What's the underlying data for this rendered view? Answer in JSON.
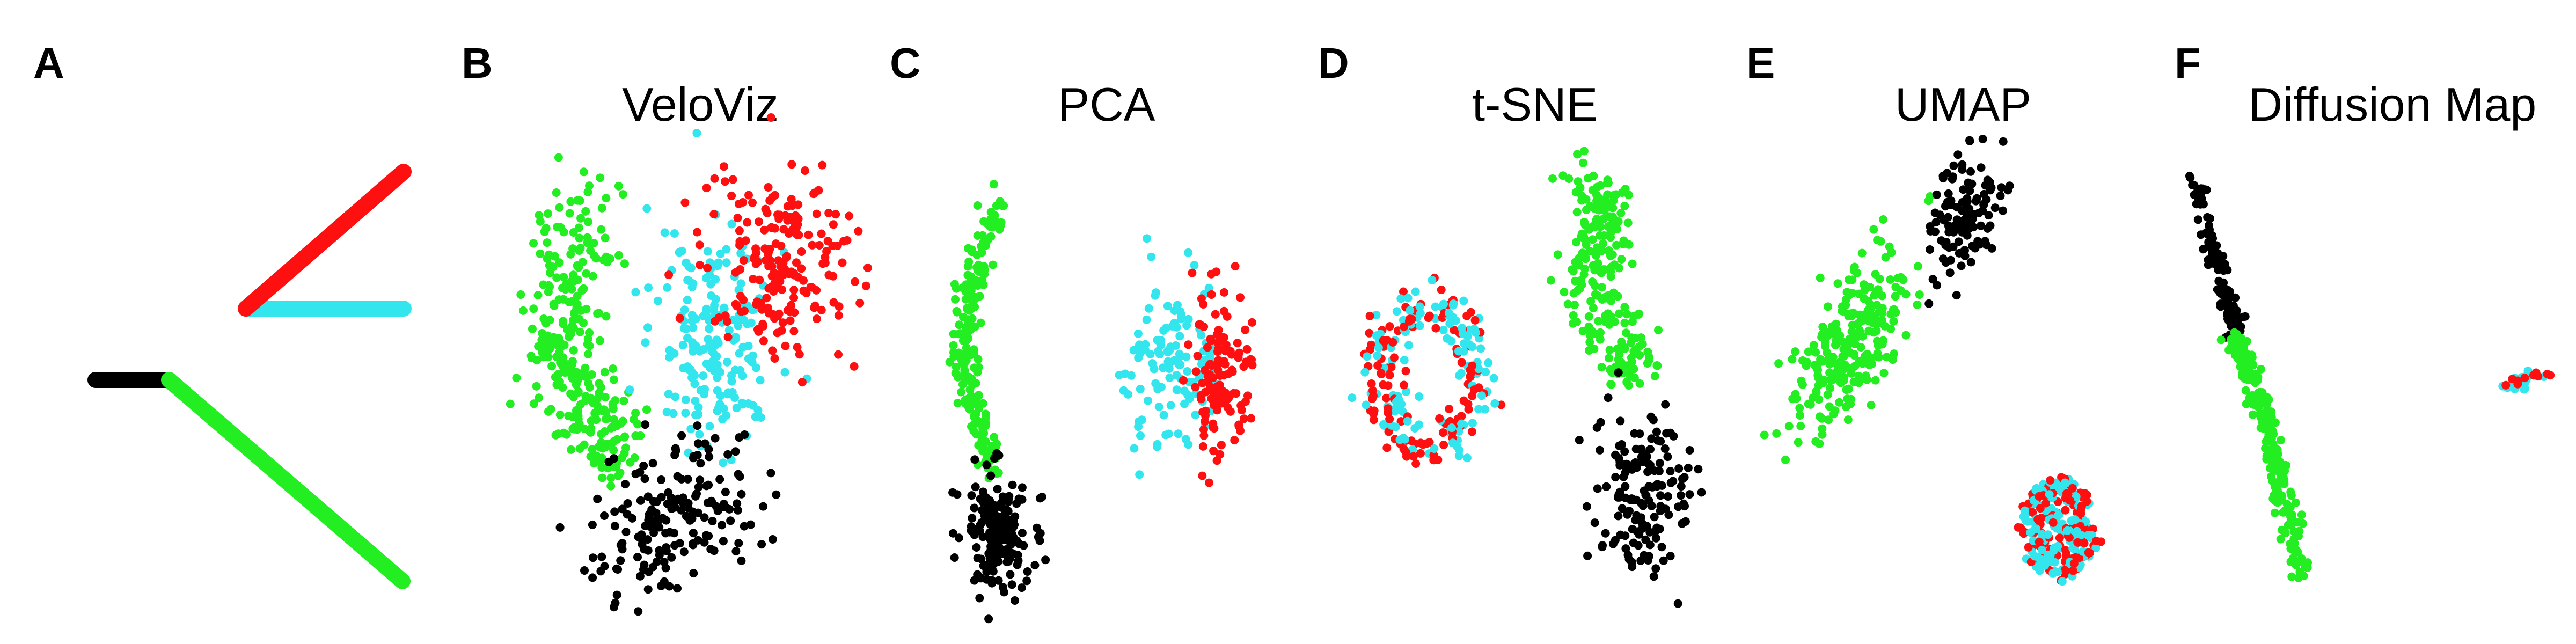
{
  "colors": {
    "black": "#000000",
    "green": "#22ee22",
    "cyan": "#33e6ee",
    "red": "#ff1010"
  },
  "panels": [
    {
      "letter": "A",
      "title": ""
    },
    {
      "letter": "B",
      "title": "VeloViz"
    },
    {
      "letter": "C",
      "title": "PCA"
    },
    {
      "letter": "D",
      "title": "t-SNE"
    },
    {
      "letter": "E",
      "title": "UMAP"
    },
    {
      "letter": "F",
      "title": "Diffusion Map"
    }
  ],
  "trajectory": [
    {
      "name": "black-branch",
      "color": "black"
    },
    {
      "name": "green-branch",
      "color": "green"
    },
    {
      "name": "cyan-branch",
      "color": "cyan"
    },
    {
      "name": "red-branch",
      "color": "red"
    }
  ]
}
